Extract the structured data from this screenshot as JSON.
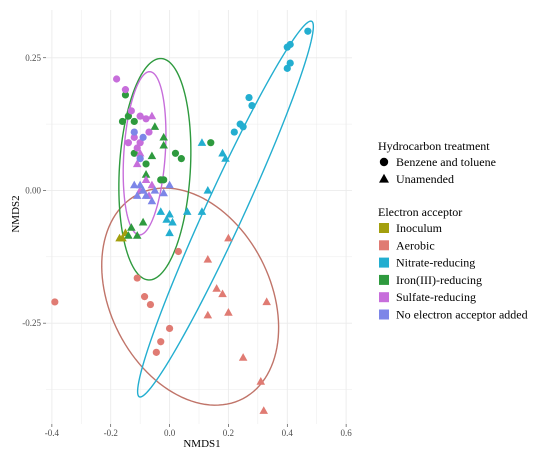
{
  "chart_data": {
    "type": "scatter",
    "xlabel": "NMDS1",
    "ylabel": "NMDS2",
    "xlim": [
      -0.42,
      0.62
    ],
    "ylim": [
      -0.44,
      0.34
    ],
    "xticks": [
      -0.4,
      -0.2,
      0.0,
      0.2,
      0.4,
      0.6
    ],
    "xtick_labels": [
      "-0.4",
      "-0.2",
      "0.0",
      "0.2",
      "0.4",
      "0.6"
    ],
    "yticks": [
      -0.25,
      0.0,
      0.25
    ],
    "ytick_labels": [
      "-0.25",
      "0.00",
      "0.25"
    ],
    "grid": true,
    "legend_position": "right",
    "shape_legend": {
      "title": "Hydrocarbon treatment",
      "items": [
        {
          "label": "Benzene and toluene",
          "shape": "circle"
        },
        {
          "label": "Unamended",
          "shape": "triangle"
        }
      ]
    },
    "color_legend": {
      "title": "Electron acceptor",
      "items": [
        {
          "label": "Inoculum",
          "color": "#a39f0e"
        },
        {
          "label": "Aerobic",
          "color": "#e07b73"
        },
        {
          "label": "Nitrate-reducing",
          "color": "#23aed0"
        },
        {
          "label": "Iron(III)-reducing",
          "color": "#2e9a3e"
        },
        {
          "label": "Sulfate-reducing",
          "color": "#c76edb"
        },
        {
          "label": "No electron acceptor added",
          "color": "#7d86e8"
        }
      ]
    },
    "ellipses": [
      {
        "group": "Aerobic",
        "color": "#c07469",
        "cx": 0.07,
        "cy": -0.2,
        "rx": 0.31,
        "ry": 0.19,
        "angle_deg": -18
      },
      {
        "group": "Nitrate-reducing",
        "color": "#23aed0",
        "cx": 0.19,
        "cy": -0.035,
        "rx": 0.46,
        "ry": 0.055,
        "angle_deg": 50
      },
      {
        "group": "Iron(III)-reducing",
        "color": "#2e9a3e",
        "cx": -0.05,
        "cy": 0.04,
        "rx": 0.12,
        "ry": 0.21,
        "angle_deg": -8
      },
      {
        "group": "Sulfate-reducing",
        "color": "#c76edb",
        "cx": -0.085,
        "cy": 0.07,
        "rx": 0.07,
        "ry": 0.155,
        "angle_deg": -8
      }
    ],
    "series": [
      {
        "name": "Inoculum",
        "color": "#a39f0e",
        "points": [
          {
            "x": -0.17,
            "y": -0.09,
            "shape": "triangle"
          },
          {
            "x": -0.16,
            "y": -0.09,
            "shape": "triangle"
          },
          {
            "x": -0.15,
            "y": -0.08,
            "shape": "triangle"
          }
        ]
      },
      {
        "name": "Aerobic",
        "color": "#e07b73",
        "points": [
          {
            "x": -0.39,
            "y": -0.21,
            "shape": "circle"
          },
          {
            "x": -0.11,
            "y": -0.165,
            "shape": "circle"
          },
          {
            "x": -0.085,
            "y": -0.2,
            "shape": "circle"
          },
          {
            "x": -0.065,
            "y": -0.215,
            "shape": "circle"
          },
          {
            "x": -0.03,
            "y": -0.285,
            "shape": "circle"
          },
          {
            "x": -0.045,
            "y": -0.305,
            "shape": "circle"
          },
          {
            "x": 0.0,
            "y": -0.26,
            "shape": "circle"
          },
          {
            "x": 0.03,
            "y": -0.115,
            "shape": "circle"
          },
          {
            "x": 0.13,
            "y": -0.13,
            "shape": "triangle"
          },
          {
            "x": 0.2,
            "y": -0.09,
            "shape": "triangle"
          },
          {
            "x": 0.16,
            "y": -0.185,
            "shape": "triangle"
          },
          {
            "x": 0.18,
            "y": -0.195,
            "shape": "triangle"
          },
          {
            "x": 0.13,
            "y": -0.235,
            "shape": "triangle"
          },
          {
            "x": 0.2,
            "y": -0.23,
            "shape": "triangle"
          },
          {
            "x": 0.33,
            "y": -0.21,
            "shape": "triangle"
          },
          {
            "x": 0.25,
            "y": -0.315,
            "shape": "triangle"
          },
          {
            "x": 0.31,
            "y": -0.36,
            "shape": "triangle"
          },
          {
            "x": 0.32,
            "y": -0.415,
            "shape": "triangle"
          }
        ]
      },
      {
        "name": "Nitrate-reducing",
        "color": "#23aed0",
        "points": [
          {
            "x": 0.47,
            "y": 0.3,
            "shape": "circle"
          },
          {
            "x": 0.41,
            "y": 0.275,
            "shape": "circle"
          },
          {
            "x": 0.4,
            "y": 0.27,
            "shape": "circle"
          },
          {
            "x": 0.41,
            "y": 0.24,
            "shape": "circle"
          },
          {
            "x": 0.4,
            "y": 0.23,
            "shape": "circle"
          },
          {
            "x": 0.27,
            "y": 0.175,
            "shape": "circle"
          },
          {
            "x": 0.28,
            "y": 0.16,
            "shape": "circle"
          },
          {
            "x": 0.24,
            "y": 0.125,
            "shape": "circle"
          },
          {
            "x": 0.25,
            "y": 0.12,
            "shape": "circle"
          },
          {
            "x": 0.22,
            "y": 0.11,
            "shape": "circle"
          },
          {
            "x": 0.11,
            "y": 0.09,
            "shape": "triangle"
          },
          {
            "x": 0.18,
            "y": 0.07,
            "shape": "triangle"
          },
          {
            "x": 0.19,
            "y": 0.06,
            "shape": "triangle"
          },
          {
            "x": 0.13,
            "y": 0.0,
            "shape": "triangle"
          },
          {
            "x": 0.11,
            "y": -0.04,
            "shape": "triangle"
          },
          {
            "x": 0.06,
            "y": -0.04,
            "shape": "triangle"
          },
          {
            "x": 0.0,
            "y": -0.045,
            "shape": "triangle"
          },
          {
            "x": -0.01,
            "y": -0.055,
            "shape": "triangle"
          },
          {
            "x": 0.0,
            "y": -0.08,
            "shape": "triangle"
          },
          {
            "x": -0.03,
            "y": -0.04,
            "shape": "triangle"
          },
          {
            "x": 0.01,
            "y": -0.06,
            "shape": "triangle"
          }
        ]
      },
      {
        "name": "Iron(III)-reducing",
        "color": "#2e9a3e",
        "points": [
          {
            "x": -0.15,
            "y": 0.18,
            "shape": "circle"
          },
          {
            "x": -0.14,
            "y": 0.14,
            "shape": "circle"
          },
          {
            "x": -0.16,
            "y": 0.13,
            "shape": "circle"
          },
          {
            "x": -0.12,
            "y": 0.13,
            "shape": "circle"
          },
          {
            "x": -0.12,
            "y": 0.07,
            "shape": "circle"
          },
          {
            "x": -0.08,
            "y": 0.05,
            "shape": "circle"
          },
          {
            "x": 0.02,
            "y": 0.07,
            "shape": "circle"
          },
          {
            "x": 0.04,
            "y": 0.06,
            "shape": "circle"
          },
          {
            "x": -0.03,
            "y": 0.02,
            "shape": "circle"
          },
          {
            "x": -0.02,
            "y": 0.02,
            "shape": "circle"
          },
          {
            "x": 0.14,
            "y": 0.09,
            "shape": "circle"
          },
          {
            "x": -0.05,
            "y": 0.12,
            "shape": "triangle"
          },
          {
            "x": -0.02,
            "y": 0.1,
            "shape": "triangle"
          },
          {
            "x": -0.02,
            "y": 0.085,
            "shape": "triangle"
          },
          {
            "x": -0.06,
            "y": 0.065,
            "shape": "triangle"
          },
          {
            "x": -0.08,
            "y": 0.03,
            "shape": "triangle"
          },
          {
            "x": -0.09,
            "y": -0.06,
            "shape": "triangle"
          },
          {
            "x": -0.13,
            "y": -0.07,
            "shape": "triangle"
          },
          {
            "x": -0.14,
            "y": -0.085,
            "shape": "triangle"
          },
          {
            "x": -0.11,
            "y": -0.085,
            "shape": "triangle"
          }
        ]
      },
      {
        "name": "Sulfate-reducing",
        "color": "#c76edb",
        "points": [
          {
            "x": -0.18,
            "y": 0.21,
            "shape": "circle"
          },
          {
            "x": -0.15,
            "y": 0.19,
            "shape": "circle"
          },
          {
            "x": -0.13,
            "y": 0.15,
            "shape": "circle"
          },
          {
            "x": -0.1,
            "y": 0.14,
            "shape": "circle"
          },
          {
            "x": -0.08,
            "y": 0.135,
            "shape": "circle"
          },
          {
            "x": -0.12,
            "y": 0.1,
            "shape": "circle"
          },
          {
            "x": -0.1,
            "y": 0.09,
            "shape": "circle"
          },
          {
            "x": -0.11,
            "y": 0.08,
            "shape": "circle"
          },
          {
            "x": -0.14,
            "y": 0.09,
            "shape": "circle"
          },
          {
            "x": -0.07,
            "y": 0.11,
            "shape": "circle"
          },
          {
            "x": -0.06,
            "y": 0.14,
            "shape": "triangle"
          },
          {
            "x": -0.1,
            "y": 0.07,
            "shape": "triangle"
          },
          {
            "x": -0.11,
            "y": 0.05,
            "shape": "triangle"
          },
          {
            "x": -0.08,
            "y": 0.02,
            "shape": "triangle"
          },
          {
            "x": -0.06,
            "y": 0.01,
            "shape": "triangle"
          },
          {
            "x": -0.07,
            "y": -0.01,
            "shape": "triangle"
          },
          {
            "x": -0.1,
            "y": 0.0,
            "shape": "triangle"
          }
        ]
      },
      {
        "name": "No electron acceptor added",
        "color": "#7d86e8",
        "points": [
          {
            "x": -0.12,
            "y": 0.11,
            "shape": "circle"
          },
          {
            "x": -0.09,
            "y": 0.1,
            "shape": "circle"
          },
          {
            "x": -0.1,
            "y": 0.06,
            "shape": "circle"
          },
          {
            "x": -0.12,
            "y": 0.01,
            "shape": "triangle"
          },
          {
            "x": -0.1,
            "y": 0.01,
            "shape": "triangle"
          },
          {
            "x": -0.09,
            "y": 0.0,
            "shape": "triangle"
          },
          {
            "x": -0.11,
            "y": -0.01,
            "shape": "triangle"
          },
          {
            "x": -0.08,
            "y": -0.01,
            "shape": "triangle"
          },
          {
            "x": -0.05,
            "y": 0.0,
            "shape": "triangle"
          },
          {
            "x": -0.02,
            "y": -0.005,
            "shape": "triangle"
          },
          {
            "x": 0.0,
            "y": 0.01,
            "shape": "triangle"
          },
          {
            "x": -0.06,
            "y": -0.02,
            "shape": "triangle"
          }
        ]
      }
    ]
  }
}
